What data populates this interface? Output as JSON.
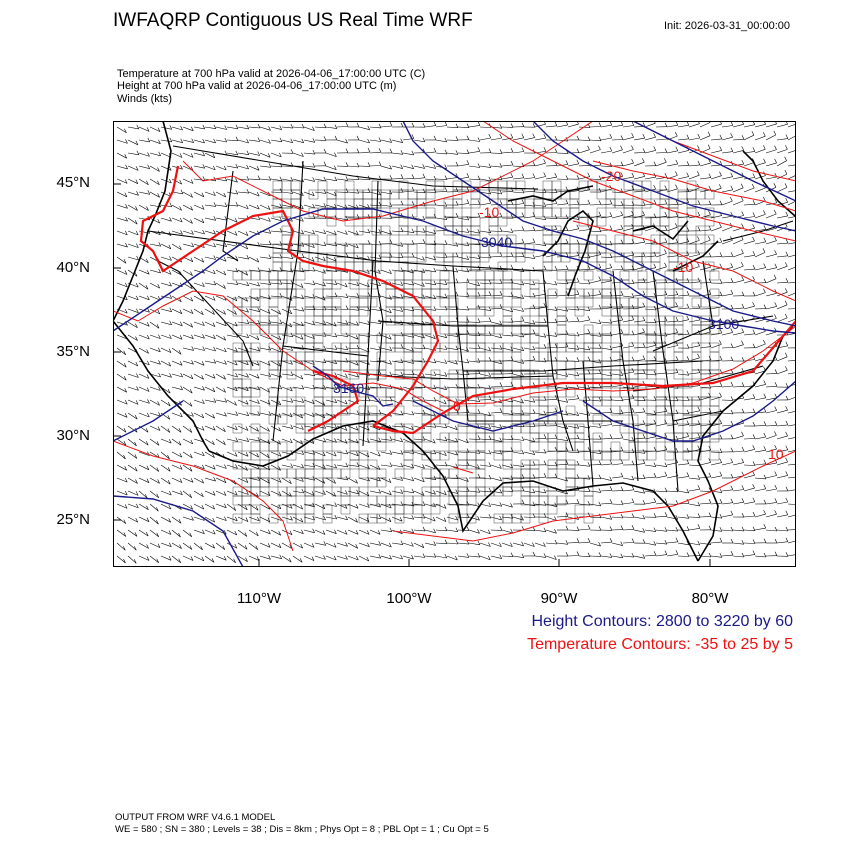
{
  "header": {
    "title": "IWFAQRP Contiguous US Real Time WRF",
    "init": "Init: 2026-03-31_00:00:00"
  },
  "subtitles": [
    "Temperature at 700 hPa valid at 2026-04-06_17:00:00 UTC   (C)",
    "Height at 700 hPa valid at 2026-04-06_17:00:00 UTC   (m)",
    "Winds   (kts)"
  ],
  "map": {
    "lat_labels": [
      "45°N",
      "40°N",
      "35°N",
      "30°N",
      "25°N"
    ],
    "lon_labels": [
      "110°W",
      "100°W",
      "90°W",
      "80°W"
    ],
    "height_labels": [
      "3040",
      "3160",
      "3100"
    ],
    "temp_labels": [
      "-20",
      "-10",
      "-10",
      "0",
      "10"
    ],
    "colors": {
      "height": "#1a1a8a",
      "temperature": "#ee1111",
      "borders": "#000000"
    }
  },
  "legend": {
    "height": "Height Contours: 2800 to 3220 by 60",
    "temperature": "Temperature Contours: -35 to 25 by 5"
  },
  "footer": {
    "line1": "OUTPUT FROM WRF V4.6.1 MODEL",
    "line2": "WE = 580 ; SN = 380 ; Levels = 38 ; Dis = 8km ; Phys Opt = 8 ; PBL Opt = 1 ; Cu Opt = 5"
  }
}
